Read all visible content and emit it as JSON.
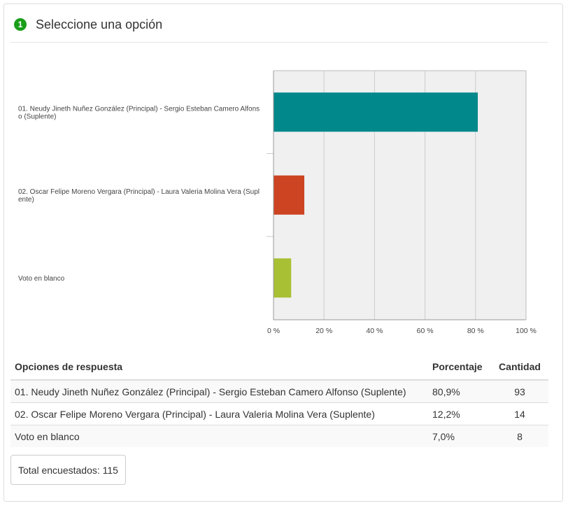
{
  "question": {
    "number": "1",
    "title": "Seleccione una opción"
  },
  "colors": {
    "number_badge": "#1a9e1a",
    "series": [
      "#00888a",
      "#cc4422",
      "#a8c034"
    ],
    "plot_background": "#f0f0f0",
    "grid": "#cccccc"
  },
  "chart_data": {
    "type": "bar",
    "orientation": "horizontal",
    "categories": [
      "01. Neudy Jineth Nuñez González (Principal) - Sergio Esteban Camero Alfonso (Suplente)",
      "02. Oscar Felipe Moreno Vergara (Principal) - Laura Valeria Molina Vera (Suplente)",
      "Voto en blanco"
    ],
    "category_label_lines": [
      [
        "01. Neudy Jineth Nuñez González (Principal) - Sergio Esteban Camero Alfons",
        "o (Suplente)"
      ],
      [
        "02. Oscar Felipe Moreno Vergara (Principal) - Laura Valeria Molina Vera (Supl",
        "ente)"
      ],
      [
        "Voto en blanco"
      ]
    ],
    "values": [
      80.9,
      12.2,
      7.0
    ],
    "xlim": [
      0,
      100
    ],
    "x_ticks": [
      0,
      20,
      40,
      60,
      80,
      100
    ],
    "x_tick_labels": [
      "0 %",
      "20 %",
      "40 %",
      "60 %",
      "80 %",
      "100 %"
    ],
    "grid": true
  },
  "table": {
    "headers": {
      "option": "Opciones de respuesta",
      "percent": "Porcentaje",
      "count": "Cantidad"
    },
    "rows": [
      {
        "option": "01. Neudy Jineth Nuñez González (Principal) - Sergio Esteban Camero Alfonso (Suplente)",
        "percent": "80,9%",
        "count": "93"
      },
      {
        "option": "02. Oscar Felipe Moreno Vergara (Principal) - Laura Valeria Molina Vera (Suplente)",
        "percent": "12,2%",
        "count": "14"
      },
      {
        "option": "Voto en blanco",
        "percent": "7,0%",
        "count": "8"
      }
    ]
  },
  "total": {
    "label": "Total encuestados: 115"
  }
}
